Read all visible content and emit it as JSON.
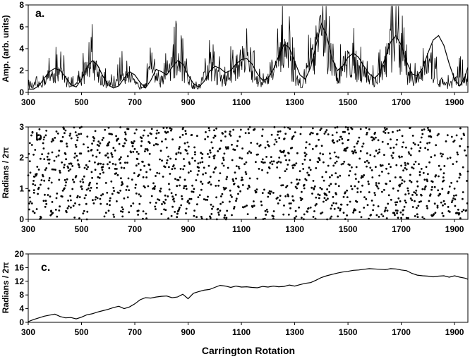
{
  "x_axis_label": "Carrington Rotation",
  "chart_data": [
    {
      "type": "line",
      "panel_label": "a.",
      "ylabel": "Amp. (arb. units)",
      "xlim": [
        300,
        1950
      ],
      "ylim": [
        0,
        8
      ],
      "xticks": [
        "300",
        "500",
        "700",
        "900",
        "1100",
        "1300",
        "1500",
        "1700",
        "1900"
      ],
      "yticks": [
        "0",
        "2",
        "4",
        "6",
        "8"
      ],
      "grid": false,
      "series": [
        {
          "style": "noisy",
          "x": [
            300,
            320,
            340,
            360,
            380,
            400,
            420,
            440,
            460,
            480,
            500,
            520,
            540,
            560,
            580,
            600,
            620,
            640,
            660,
            680,
            700,
            720,
            740,
            760,
            780,
            800,
            820,
            840,
            860,
            880,
            900,
            920,
            940,
            960,
            980,
            1000,
            1020,
            1040,
            1060,
            1080,
            1100,
            1120,
            1140,
            1160,
            1180,
            1200,
            1220,
            1240,
            1260,
            1280,
            1300,
            1320,
            1340,
            1360,
            1380,
            1400,
            1420,
            1440,
            1460,
            1480,
            1500,
            1520,
            1540,
            1560,
            1580,
            1600,
            1620,
            1640,
            1660,
            1680,
            1700,
            1720,
            1740,
            1760,
            1780,
            1800,
            1820,
            1840,
            1860,
            1880,
            1900,
            1920,
            1940,
            1950
          ],
          "y": [
            1.0,
            0.6,
            0.8,
            1.4,
            1.9,
            2.3,
            2.1,
            1.5,
            0.9,
            0.7,
            1.5,
            2.9,
            3.5,
            2.4,
            1.3,
            0.8,
            0.9,
            1.6,
            2.1,
            1.8,
            0.9,
            0.7,
            1.2,
            2.3,
            2.0,
            1.1,
            1.9,
            2.6,
            3.5,
            2.8,
            1.6,
            0.8,
            0.6,
            1.8,
            2.8,
            2.2,
            1.6,
            1.3,
            2.1,
            3.0,
            3.2,
            3.5,
            2.6,
            1.4,
            0.9,
            1.4,
            2.6,
            3.4,
            4.3,
            3.4,
            1.8,
            0.9,
            1.6,
            3.2,
            4.9,
            6.6,
            4.6,
            2.6,
            1.8,
            2.7,
            3.6,
            3.1,
            2.5,
            2.1,
            1.6,
            1.2,
            1.9,
            3.4,
            4.8,
            6.6,
            4.0,
            2.2,
            1.1,
            1.5,
            2.4,
            3.1,
            2.3,
            1.3,
            1.0,
            0.9,
            1.1,
            1.7,
            1.4,
            1.2
          ]
        },
        {
          "style": "smooth",
          "x": [
            300,
            320,
            340,
            360,
            380,
            400,
            420,
            440,
            460,
            480,
            500,
            520,
            540,
            560,
            580,
            600,
            620,
            640,
            660,
            680,
            700,
            720,
            740,
            760,
            780,
            800,
            820,
            840,
            860,
            880,
            900,
            920,
            940,
            960,
            980,
            1000,
            1020,
            1040,
            1060,
            1080,
            1100,
            1120,
            1140,
            1160,
            1180,
            1200,
            1220,
            1240,
            1260,
            1280,
            1300,
            1320,
            1340,
            1360,
            1380,
            1400,
            1420,
            1440,
            1460,
            1480,
            1500,
            1520,
            1540,
            1560,
            1580,
            1600,
            1620,
            1640,
            1660,
            1680,
            1700,
            1720,
            1740,
            1760,
            1780,
            1800,
            1820,
            1840,
            1860,
            1880,
            1900,
            1920,
            1940,
            1950
          ],
          "y": [
            0.3,
            0.3,
            0.6,
            1.3,
            1.9,
            2.2,
            2.0,
            1.4,
            0.7,
            0.5,
            1.2,
            2.3,
            2.9,
            2.5,
            1.5,
            0.7,
            0.4,
            0.6,
            1.3,
            1.9,
            1.6,
            0.9,
            0.4,
            1.1,
            2.1,
            1.9,
            1.6,
            2.3,
            2.9,
            2.6,
            1.6,
            0.8,
            0.5,
            1.0,
            1.9,
            2.4,
            2.2,
            1.8,
            2.0,
            2.6,
            3.0,
            3.1,
            2.6,
            1.7,
            1.1,
            1.3,
            2.1,
            3.3,
            4.4,
            4.1,
            2.8,
            1.6,
            1.2,
            2.3,
            4.3,
            6.3,
            5.2,
            3.1,
            2.0,
            2.4,
            3.2,
            3.6,
            3.2,
            2.4,
            1.7,
            1.3,
            1.8,
            3.2,
            4.6,
            5.2,
            4.3,
            2.8,
            1.7,
            1.5,
            2.2,
            3.6,
            4.8,
            5.2,
            4.3,
            2.6,
            1.2,
            0.6,
            1.5,
            2.3
          ]
        }
      ]
    },
    {
      "type": "scatter",
      "panel_label": "b.",
      "ylabel": "Radians / 2π",
      "xlim": [
        300,
        1950
      ],
      "ylim": [
        0,
        3
      ],
      "xticks": [
        "300",
        "500",
        "700",
        "900",
        "1100",
        "1300",
        "1500",
        "1700",
        "1900"
      ],
      "yticks": [
        "0",
        "1",
        "2",
        "3"
      ],
      "grid": false,
      "points_per_rotation_step": 2,
      "bands": [
        0.5,
        1.5,
        2.5
      ],
      "band_drift_per_cycle": 0.9
    },
    {
      "type": "line",
      "panel_label": "c.",
      "ylabel": "Radians / 2π",
      "xlim": [
        300,
        1950
      ],
      "ylim": [
        0,
        20
      ],
      "xticks": [
        "300",
        "500",
        "700",
        "900",
        "1100",
        "1300",
        "1500",
        "1700",
        "1900"
      ],
      "yticks": [
        "0",
        "4",
        "8",
        "12",
        "16",
        "20"
      ],
      "grid": false,
      "series": [
        {
          "x": [
            300,
            320,
            340,
            360,
            380,
            400,
            420,
            440,
            460,
            480,
            500,
            520,
            540,
            560,
            580,
            600,
            620,
            640,
            660,
            680,
            700,
            720,
            740,
            760,
            780,
            800,
            820,
            840,
            860,
            880,
            900,
            920,
            940,
            960,
            980,
            1000,
            1020,
            1040,
            1060,
            1080,
            1100,
            1120,
            1140,
            1160,
            1180,
            1200,
            1220,
            1240,
            1260,
            1280,
            1300,
            1320,
            1340,
            1360,
            1380,
            1400,
            1420,
            1440,
            1460,
            1480,
            1500,
            1520,
            1540,
            1560,
            1580,
            1600,
            1620,
            1640,
            1660,
            1680,
            1700,
            1720,
            1740,
            1760,
            1780,
            1800,
            1820,
            1840,
            1860,
            1880,
            1900,
            1920,
            1940,
            1950
          ],
          "y": [
            0.2,
            0.8,
            1.3,
            1.8,
            2.1,
            2.4,
            1.7,
            1.3,
            1.4,
            1.0,
            1.5,
            2.2,
            2.5,
            3.0,
            3.4,
            3.8,
            4.3,
            4.7,
            4.0,
            4.5,
            5.4,
            6.6,
            7.2,
            7.1,
            7.4,
            7.6,
            7.7,
            7.2,
            7.4,
            8.2,
            6.9,
            8.5,
            9.0,
            9.4,
            9.6,
            10.2,
            10.8,
            10.6,
            10.2,
            10.6,
            10.3,
            10.4,
            10.2,
            10.1,
            10.5,
            10.3,
            10.6,
            10.4,
            10.5,
            10.9,
            10.6,
            11.0,
            11.4,
            11.6,
            12.3,
            13.1,
            13.6,
            14.0,
            14.4,
            14.7,
            14.9,
            15.2,
            15.3,
            15.5,
            15.7,
            15.6,
            15.5,
            15.4,
            15.7,
            15.6,
            15.3,
            15.1,
            14.3,
            13.8,
            13.6,
            13.5,
            13.3,
            13.5,
            13.6,
            13.2,
            13.6,
            13.2,
            12.9,
            12.6
          ]
        }
      ]
    }
  ]
}
